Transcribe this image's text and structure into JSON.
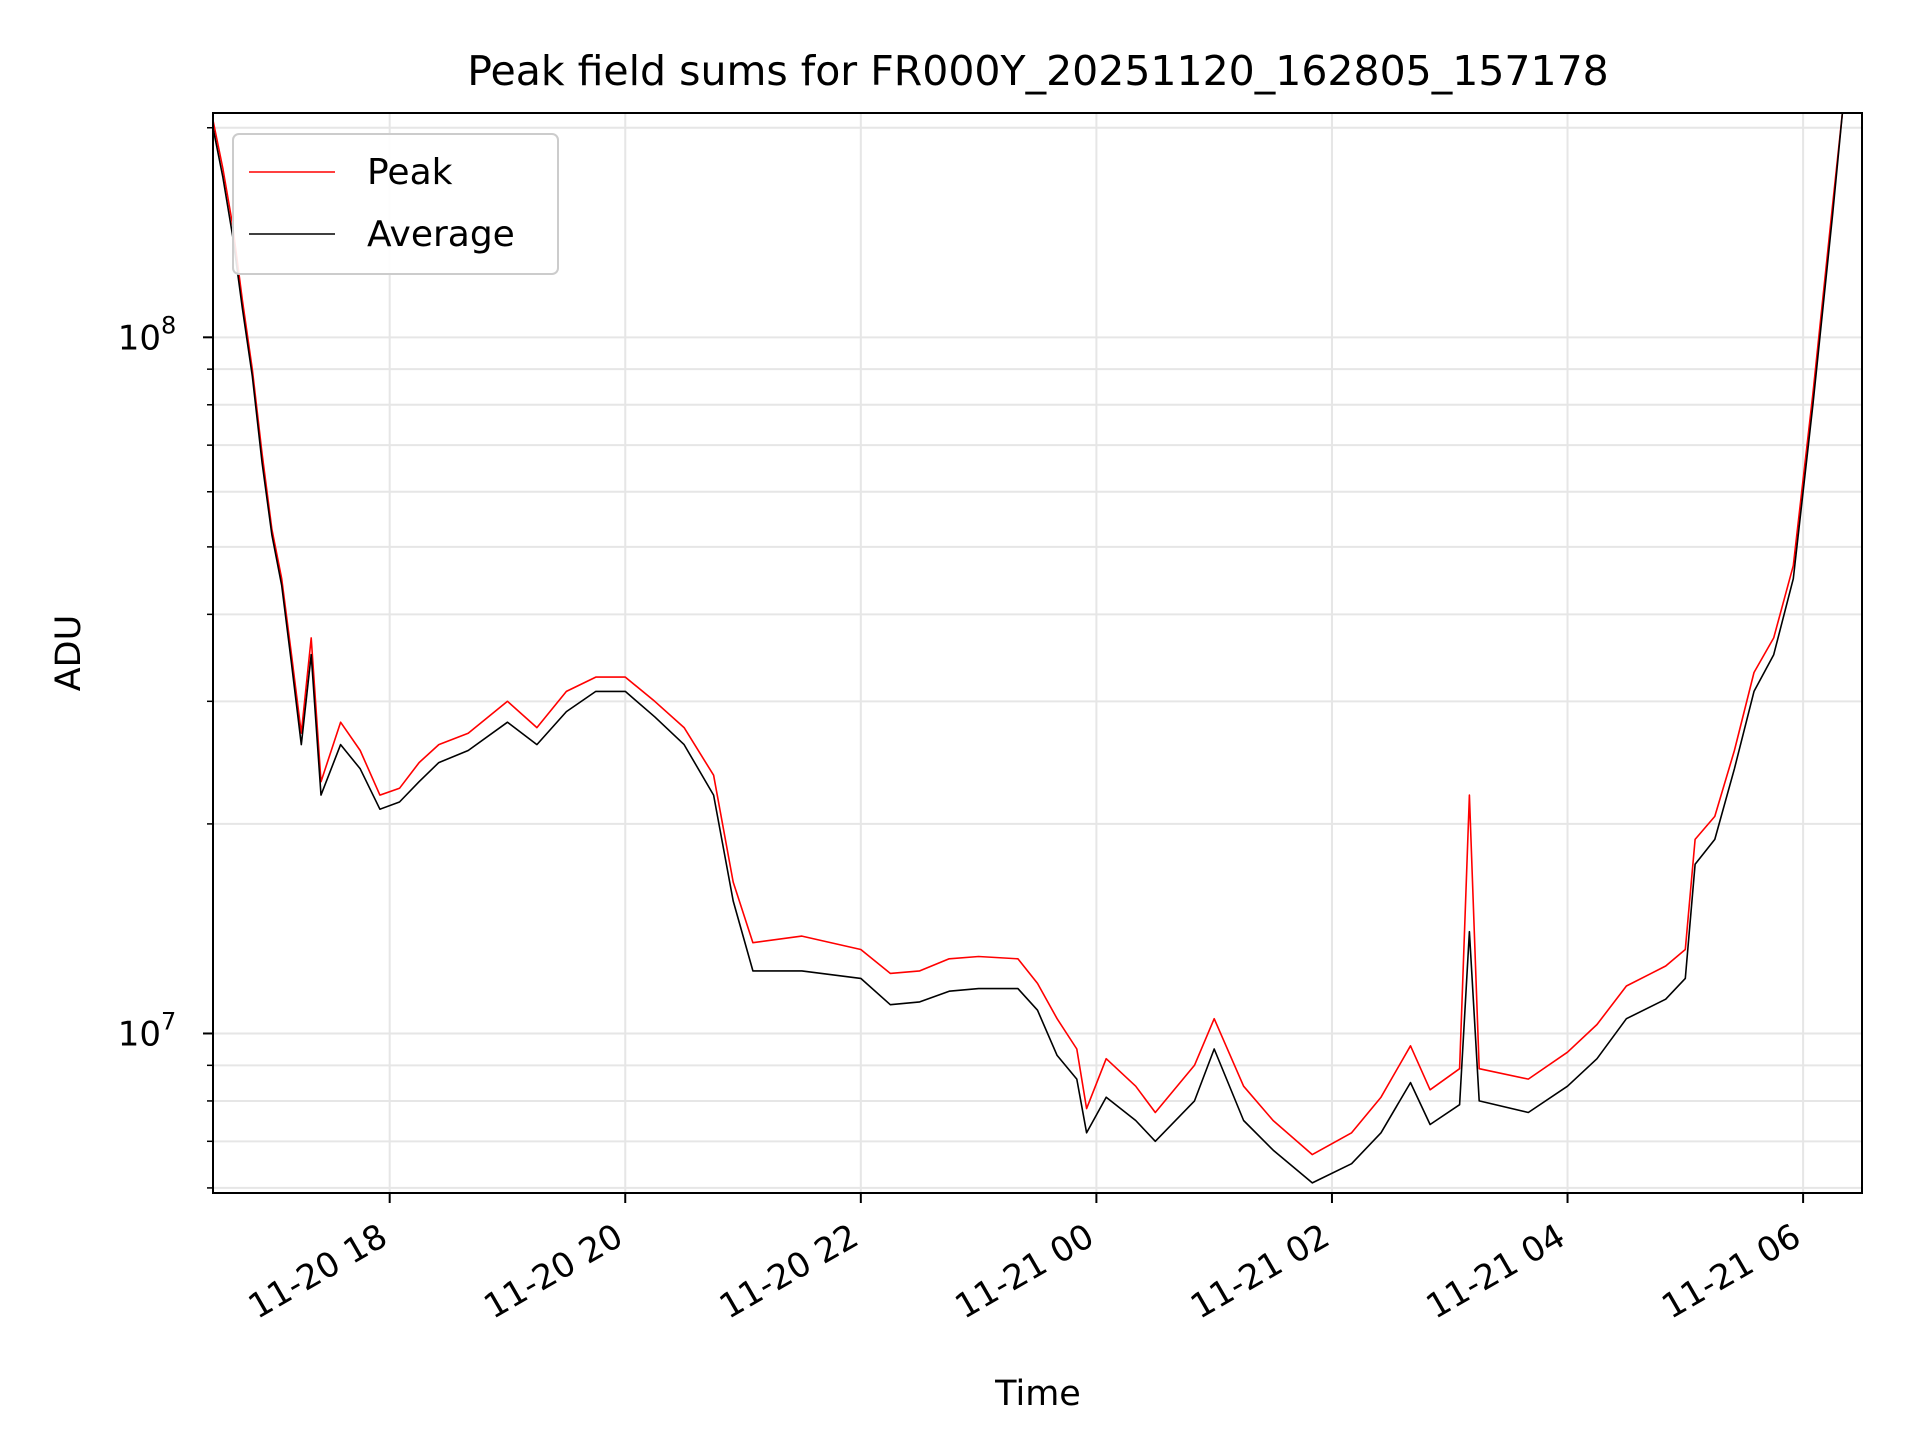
{
  "chart_data": {
    "type": "line",
    "title": "Peak field sums for FR000Y_20251120_162805_157178",
    "xlabel": "Time",
    "ylabel": "ADU",
    "yscale": "log",
    "xlim": [
      "2025-11-20 16:30",
      "2025-11-21 06:30"
    ],
    "ylim": [
      5900000,
      210000000
    ],
    "x_ticks": [
      {
        "t": "2025-11-20 18:00",
        "label": "11-20 18"
      },
      {
        "t": "2025-11-20 20:00",
        "label": "11-20 20"
      },
      {
        "t": "2025-11-20 22:00",
        "label": "11-20 22"
      },
      {
        "t": "2025-11-21 00:00",
        "label": "11-21 00"
      },
      {
        "t": "2025-11-21 02:00",
        "label": "11-21 02"
      },
      {
        "t": "2025-11-21 04:00",
        "label": "11-21 04"
      },
      {
        "t": "2025-11-21 06:00",
        "label": "11-21 06"
      }
    ],
    "y_ticks": [
      {
        "value": 10000000,
        "base": "10",
        "exp": "7"
      },
      {
        "value": 100000000,
        "base": "10",
        "exp": "8"
      }
    ],
    "grid": true,
    "legend": "top-left",
    "series": [
      {
        "name": "Average",
        "color": "#000000",
        "points": [
          [
            "2025-11-20 16:30",
            200000000
          ],
          [
            "2025-11-20 16:35",
            170000000
          ],
          [
            "2025-11-20 16:40",
            140000000
          ],
          [
            "2025-11-20 16:45",
            110000000
          ],
          [
            "2025-11-20 16:50",
            88000000
          ],
          [
            "2025-11-20 16:55",
            66000000
          ],
          [
            "2025-11-20 17:00",
            52000000
          ],
          [
            "2025-11-20 17:05",
            44000000
          ],
          [
            "2025-11-20 17:10",
            34000000
          ],
          [
            "2025-11-20 17:15",
            26000000
          ],
          [
            "2025-11-20 17:20",
            35000000
          ],
          [
            "2025-11-20 17:25",
            22000000
          ],
          [
            "2025-11-20 17:35",
            26000000
          ],
          [
            "2025-11-20 17:45",
            24000000
          ],
          [
            "2025-11-20 17:55",
            21000000
          ],
          [
            "2025-11-20 18:05",
            21500000
          ],
          [
            "2025-11-20 18:15",
            23000000
          ],
          [
            "2025-11-20 18:25",
            24500000
          ],
          [
            "2025-11-20 18:40",
            25500000
          ],
          [
            "2025-11-20 19:00",
            28000000
          ],
          [
            "2025-11-20 19:15",
            26000000
          ],
          [
            "2025-11-20 19:30",
            29000000
          ],
          [
            "2025-11-20 19:45",
            31000000
          ],
          [
            "2025-11-20 20:00",
            31000000
          ],
          [
            "2025-11-20 20:15",
            28500000
          ],
          [
            "2025-11-20 20:30",
            26000000
          ],
          [
            "2025-11-20 20:45",
            22000000
          ],
          [
            "2025-11-20 20:55",
            15500000
          ],
          [
            "2025-11-20 21:05",
            12300000
          ],
          [
            "2025-11-20 21:30",
            12300000
          ],
          [
            "2025-11-20 22:00",
            12000000
          ],
          [
            "2025-11-20 22:15",
            11000000
          ],
          [
            "2025-11-20 22:30",
            11100000
          ],
          [
            "2025-11-20 22:45",
            11500000
          ],
          [
            "2025-11-20 23:00",
            11600000
          ],
          [
            "2025-11-20 23:20",
            11600000
          ],
          [
            "2025-11-20 23:30",
            10800000
          ],
          [
            "2025-11-20 23:40",
            9300000
          ],
          [
            "2025-11-20 23:50",
            8600000
          ],
          [
            "2025-11-20 23:55",
            7200000
          ],
          [
            "2025-11-21 00:05",
            8100000
          ],
          [
            "2025-11-21 00:20",
            7500000
          ],
          [
            "2025-11-21 00:30",
            7000000
          ],
          [
            "2025-11-21 00:50",
            8000000
          ],
          [
            "2025-11-21 01:00",
            9500000
          ],
          [
            "2025-11-21 01:15",
            7500000
          ],
          [
            "2025-11-21 01:30",
            6800000
          ],
          [
            "2025-11-21 01:50",
            6100000
          ],
          [
            "2025-11-21 02:10",
            6500000
          ],
          [
            "2025-11-21 02:25",
            7200000
          ],
          [
            "2025-11-21 02:40",
            8500000
          ],
          [
            "2025-11-21 02:50",
            7400000
          ],
          [
            "2025-11-21 03:05",
            7900000
          ],
          [
            "2025-11-21 03:10",
            14000000
          ],
          [
            "2025-11-21 03:15",
            8000000
          ],
          [
            "2025-11-21 03:40",
            7700000
          ],
          [
            "2025-11-21 04:00",
            8400000
          ],
          [
            "2025-11-21 04:15",
            9200000
          ],
          [
            "2025-11-21 04:30",
            10500000
          ],
          [
            "2025-11-21 04:50",
            11200000
          ],
          [
            "2025-11-21 05:00",
            12000000
          ],
          [
            "2025-11-21 05:05",
            17500000
          ],
          [
            "2025-11-21 05:15",
            19000000
          ],
          [
            "2025-11-21 05:25",
            24000000
          ],
          [
            "2025-11-21 05:35",
            31000000
          ],
          [
            "2025-11-21 05:45",
            35000000
          ],
          [
            "2025-11-21 05:55",
            45000000
          ],
          [
            "2025-11-21 06:05",
            80000000
          ],
          [
            "2025-11-21 06:15",
            150000000
          ],
          [
            "2025-11-21 06:20",
            210000000
          ]
        ]
      },
      {
        "name": "Peak",
        "color": "#ff0000",
        "points": [
          [
            "2025-11-20 16:30",
            205000000
          ],
          [
            "2025-11-20 16:35",
            175000000
          ],
          [
            "2025-11-20 16:40",
            145000000
          ],
          [
            "2025-11-20 16:45",
            113000000
          ],
          [
            "2025-11-20 16:50",
            90000000
          ],
          [
            "2025-11-20 16:55",
            68000000
          ],
          [
            "2025-11-20 17:00",
            53000000
          ],
          [
            "2025-11-20 17:05",
            45000000
          ],
          [
            "2025-11-20 17:10",
            35000000
          ],
          [
            "2025-11-20 17:15",
            27000000
          ],
          [
            "2025-11-20 17:20",
            37000000
          ],
          [
            "2025-11-20 17:25",
            23000000
          ],
          [
            "2025-11-20 17:35",
            28000000
          ],
          [
            "2025-11-20 17:45",
            25500000
          ],
          [
            "2025-11-20 17:55",
            22000000
          ],
          [
            "2025-11-20 18:05",
            22500000
          ],
          [
            "2025-11-20 18:15",
            24500000
          ],
          [
            "2025-11-20 18:25",
            26000000
          ],
          [
            "2025-11-20 18:40",
            27000000
          ],
          [
            "2025-11-20 19:00",
            30000000
          ],
          [
            "2025-11-20 19:15",
            27500000
          ],
          [
            "2025-11-20 19:30",
            31000000
          ],
          [
            "2025-11-20 19:45",
            32500000
          ],
          [
            "2025-11-20 20:00",
            32500000
          ],
          [
            "2025-11-20 20:15",
            30000000
          ],
          [
            "2025-11-20 20:30",
            27500000
          ],
          [
            "2025-11-20 20:45",
            23500000
          ],
          [
            "2025-11-20 20:55",
            16500000
          ],
          [
            "2025-11-20 21:05",
            13500000
          ],
          [
            "2025-11-20 21:30",
            13800000
          ],
          [
            "2025-11-20 22:00",
            13200000
          ],
          [
            "2025-11-20 22:15",
            12200000
          ],
          [
            "2025-11-20 22:30",
            12300000
          ],
          [
            "2025-11-20 22:45",
            12800000
          ],
          [
            "2025-11-20 23:00",
            12900000
          ],
          [
            "2025-11-20 23:20",
            12800000
          ],
          [
            "2025-11-20 23:30",
            11800000
          ],
          [
            "2025-11-20 23:40",
            10500000
          ],
          [
            "2025-11-20 23:50",
            9500000
          ],
          [
            "2025-11-20 23:55",
            7800000
          ],
          [
            "2025-11-21 00:05",
            9200000
          ],
          [
            "2025-11-21 00:20",
            8400000
          ],
          [
            "2025-11-21 00:30",
            7700000
          ],
          [
            "2025-11-21 00:50",
            9000000
          ],
          [
            "2025-11-21 01:00",
            10500000
          ],
          [
            "2025-11-21 01:15",
            8400000
          ],
          [
            "2025-11-21 01:30",
            7500000
          ],
          [
            "2025-11-21 01:50",
            6700000
          ],
          [
            "2025-11-21 02:10",
            7200000
          ],
          [
            "2025-11-21 02:25",
            8100000
          ],
          [
            "2025-11-21 02:40",
            9600000
          ],
          [
            "2025-11-21 02:50",
            8300000
          ],
          [
            "2025-11-21 03:05",
            8900000
          ],
          [
            "2025-11-21 03:10",
            22000000
          ],
          [
            "2025-11-21 03:15",
            8900000
          ],
          [
            "2025-11-21 03:40",
            8600000
          ],
          [
            "2025-11-21 04:00",
            9400000
          ],
          [
            "2025-11-21 04:15",
            10300000
          ],
          [
            "2025-11-21 04:30",
            11700000
          ],
          [
            "2025-11-21 04:50",
            12500000
          ],
          [
            "2025-11-21 05:00",
            13200000
          ],
          [
            "2025-11-21 05:05",
            19000000
          ],
          [
            "2025-11-21 05:15",
            20500000
          ],
          [
            "2025-11-21 05:25",
            25500000
          ],
          [
            "2025-11-21 05:35",
            33000000
          ],
          [
            "2025-11-21 05:45",
            37000000
          ],
          [
            "2025-11-21 05:55",
            47000000
          ],
          [
            "2025-11-21 06:05",
            83000000
          ],
          [
            "2025-11-21 06:15",
            155000000
          ],
          [
            "2025-11-21 06:20",
            210000000
          ]
        ]
      }
    ]
  }
}
